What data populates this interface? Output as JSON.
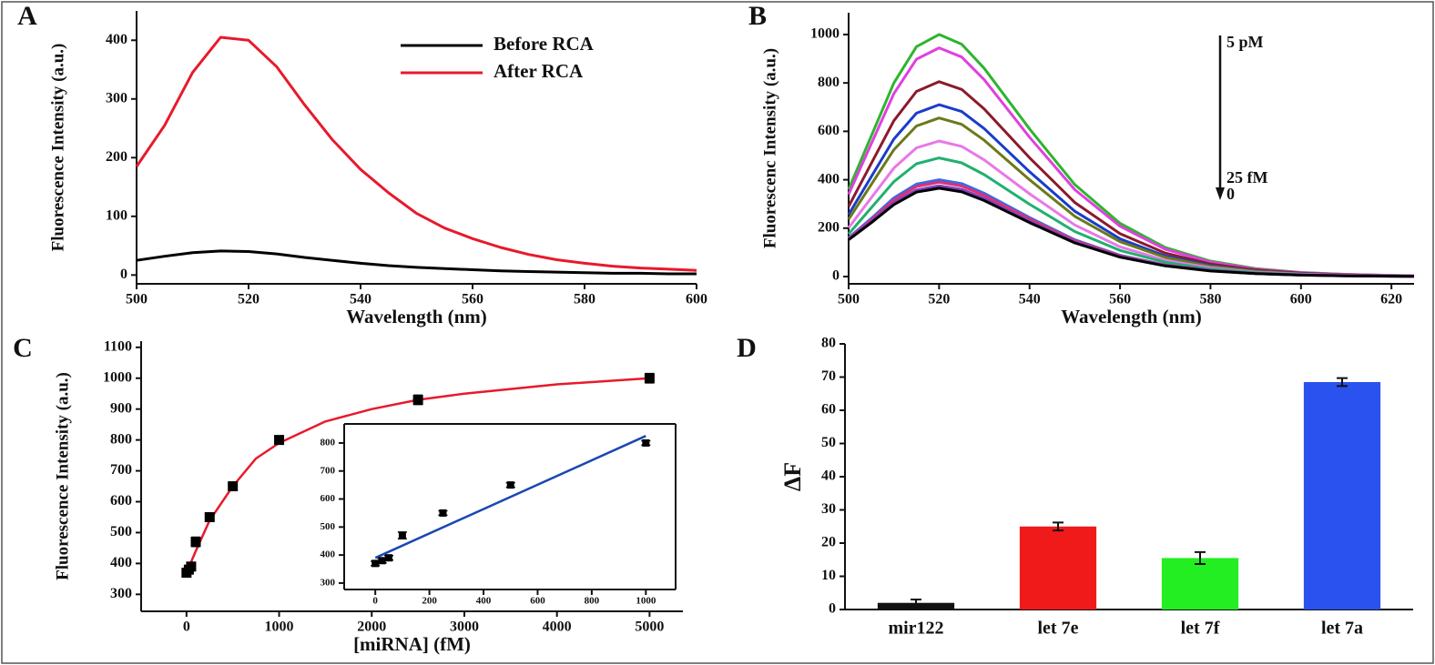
{
  "chart_data": [
    {
      "type": "line",
      "panel_label": "A",
      "xlabel": "Wavelength (nm)",
      "ylabel": "Fluorescence Intensity (a.u.)",
      "xlim": [
        500,
        600
      ],
      "ylim": [
        -15,
        450
      ],
      "xticks": [
        500,
        520,
        540,
        560,
        580,
        600
      ],
      "yticks": [
        0,
        100,
        200,
        300,
        400
      ],
      "legend": "upper right",
      "x": [
        500,
        505,
        510,
        515,
        520,
        525,
        530,
        535,
        540,
        545,
        550,
        555,
        560,
        565,
        570,
        575,
        580,
        585,
        590,
        595,
        600
      ],
      "series": [
        {
          "name": "Before RCA",
          "color": "#000000",
          "values": [
            25,
            32,
            38,
            41,
            40,
            36,
            30,
            25,
            20,
            16,
            13,
            11,
            9,
            7,
            6,
            5,
            4,
            3,
            3,
            2,
            2
          ]
        },
        {
          "name": "After RCA",
          "color": "#e8192c",
          "values": [
            185,
            255,
            345,
            405,
            400,
            355,
            290,
            230,
            180,
            140,
            105,
            80,
            62,
            47,
            35,
            26,
            20,
            15,
            12,
            10,
            8
          ]
        }
      ]
    },
    {
      "type": "line",
      "panel_label": "B",
      "xlabel": "Wavelength (nm)",
      "ylabel": "Fluorescenc Intensity (a.u.)",
      "xlim": [
        500,
        625
      ],
      "ylim": [
        -30,
        1090
      ],
      "xticks": [
        500,
        520,
        540,
        560,
        580,
        600,
        620
      ],
      "yticks": [
        0,
        200,
        400,
        600,
        800,
        1000
      ],
      "annotations": [
        "5 pM",
        "25 fM",
        "0"
      ],
      "x": [
        500,
        505,
        510,
        515,
        520,
        525,
        530,
        540,
        550,
        560,
        570,
        580,
        590,
        600,
        610,
        625
      ],
      "series": [
        {
          "color": "#2db52d",
          "values": [
            360,
            580,
            800,
            950,
            1000,
            960,
            860,
            610,
            380,
            220,
            120,
            64,
            33,
            17,
            9,
            3
          ]
        },
        {
          "color": "#e040e0",
          "values": [
            340,
            548,
            756,
            898,
            945,
            907,
            813,
            576,
            359,
            208,
            113,
            60,
            31,
            16,
            9,
            3
          ]
        },
        {
          "color": "#8b1a2b",
          "values": [
            290,
            467,
            644,
            765,
            805,
            773,
            692,
            491,
            306,
            177,
            97,
            52,
            27,
            14,
            7,
            2
          ]
        },
        {
          "color": "#1a3ccc",
          "values": [
            256,
            412,
            568,
            675,
            710,
            682,
            611,
            433,
            270,
            156,
            85,
            45,
            23,
            12,
            6,
            2
          ]
        },
        {
          "color": "#6b7a1a",
          "values": [
            236,
            380,
            524,
            622,
            655,
            629,
            563,
            400,
            249,
            144,
            79,
            42,
            22,
            11,
            6,
            2
          ]
        },
        {
          "color": "#e878e8",
          "values": [
            202,
            325,
            448,
            532,
            560,
            538,
            482,
            342,
            213,
            123,
            67,
            36,
            18,
            10,
            5,
            2
          ]
        },
        {
          "color": "#20b070",
          "values": [
            176,
            284,
            392,
            466,
            490,
            470,
            421,
            299,
            186,
            108,
            59,
            31,
            16,
            8,
            4,
            1
          ]
        },
        {
          "color": "#3a6ae8",
          "values": [
            160,
            240,
            325,
            382,
            400,
            384,
            344,
            244,
            152,
            88,
            48,
            26,
            13,
            7,
            4,
            1
          ]
        },
        {
          "color": "#e03070",
          "values": [
            158,
            234,
            316,
            372,
            390,
            374,
            335,
            238,
            148,
            86,
            47,
            25,
            13,
            7,
            4,
            1
          ]
        },
        {
          "color": "#8040c0",
          "values": [
            155,
            228,
            305,
            358,
            375,
            360,
            323,
            229,
            143,
            83,
            45,
            24,
            12,
            6,
            3,
            1
          ]
        },
        {
          "color": "#000000",
          "values": [
            152,
            222,
            297,
            349,
            365,
            350,
            314,
            223,
            139,
            80,
            44,
            23,
            12,
            6,
            3,
            1
          ]
        }
      ]
    },
    {
      "type": "scatter",
      "panel_label": "C",
      "xlabel": "[miRNA] (fM)",
      "ylabel": "Fluorescence Intensity (a.u.)",
      "xlim": [
        -490,
        5360
      ],
      "ylim": [
        245,
        1120
      ],
      "xticks": [
        0,
        1000,
        2000,
        3000,
        4000,
        5000
      ],
      "yticks": [
        300,
        400,
        500,
        600,
        700,
        800,
        900,
        1000,
        1100
      ],
      "series": [
        {
          "type": "line",
          "color": "#e8192c",
          "x": [
            0,
            50,
            100,
            250,
            500,
            750,
            1000,
            1500,
            2000,
            2500,
            3000,
            4000,
            5000
          ],
          "values": [
            370,
            405,
            440,
            540,
            650,
            740,
            790,
            860,
            900,
            930,
            950,
            980,
            1000
          ]
        },
        {
          "type": "scatter",
          "color": "#000000",
          "x": [
            0,
            25,
            50,
            100,
            250,
            500,
            1000,
            2500,
            5000
          ],
          "values": [
            370,
            380,
            390,
            470,
            550,
            650,
            800,
            930,
            1000
          ],
          "errors": [
            12,
            12,
            12,
            15,
            12,
            12,
            8,
            15,
            15
          ]
        }
      ],
      "inset": {
        "xlim": [
          -115,
          1110
        ],
        "ylim": [
          277,
          868
        ],
        "xticks": [
          0,
          200,
          400,
          600,
          800,
          1000
        ],
        "yticks": [
          300,
          400,
          500,
          600,
          700,
          800
        ],
        "series": [
          {
            "type": "line",
            "color": "#1a48b0",
            "x": [
              0,
              1000
            ],
            "values": [
              390,
              825
            ]
          },
          {
            "type": "scatter",
            "color": "#000000",
            "x": [
              0,
              25,
              50,
              100,
              250,
              500,
              1000
            ],
            "values": [
              370,
              380,
              390,
              470,
              550,
              650,
              800
            ],
            "errors": [
              8,
              8,
              8,
              12,
              8,
              8,
              8
            ]
          }
        ]
      }
    },
    {
      "type": "bar",
      "panel_label": "D",
      "ylabel": "ΔF",
      "ylim": [
        0,
        80
      ],
      "yticks": [
        0,
        10,
        20,
        30,
        40,
        50,
        60,
        70,
        80
      ],
      "categories": [
        "mir122",
        "let 7e",
        "let 7f",
        "let 7a"
      ],
      "values": [
        2,
        25,
        15.5,
        68.5
      ],
      "errors": [
        1,
        1.2,
        1.8,
        1.2
      ],
      "colors": [
        "#111111",
        "#f01a1a",
        "#22ee22",
        "#2a52ee"
      ]
    }
  ]
}
